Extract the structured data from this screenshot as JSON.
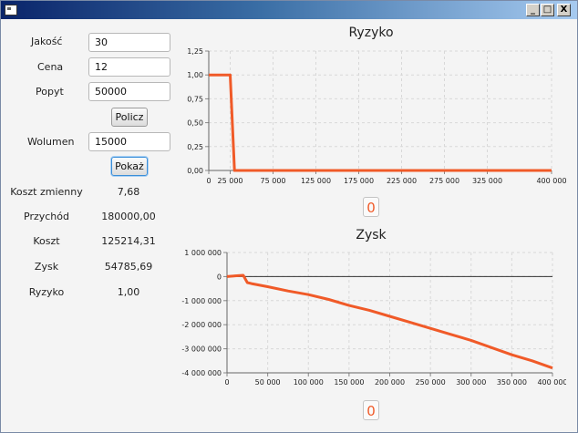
{
  "window": {
    "buttons": [
      "_",
      "□",
      "X"
    ]
  },
  "form": {
    "jakosc": {
      "label": "Jakość",
      "value": "30"
    },
    "cena": {
      "label": "Cena",
      "value": "12"
    },
    "popyt": {
      "label": "Popyt",
      "value": "50000"
    },
    "policz_label": "Policz",
    "wolumen": {
      "label": "Wolumen",
      "value": "15000"
    },
    "pokaz_label": "Pokaż"
  },
  "results": [
    {
      "label": "Koszt zmienny",
      "value": "7,68"
    },
    {
      "label": "Przychód",
      "value": "180000,00"
    },
    {
      "label": "Koszt",
      "value": "125214,31"
    },
    {
      "label": "Zysk",
      "value": "54785,69"
    },
    {
      "label": "Ryzyko",
      "value": "1,00"
    }
  ],
  "colors": {
    "series": "#f05a28",
    "grid": "#d8d8d8"
  },
  "chart_data": [
    {
      "type": "line",
      "title": "Ryzyko",
      "xlim": [
        0,
        400000
      ],
      "ylim": [
        0,
        1.25
      ],
      "x_ticks": [
        "0",
        "25 000",
        "75 000",
        "125 000",
        "175 000",
        "225 000",
        "275 000",
        "325 000",
        "400 000"
      ],
      "y_ticks": [
        "0,00",
        "0,25",
        "0,50",
        "0,75",
        "1,00",
        "1,25"
      ],
      "grid": true,
      "x": [
        0,
        10000,
        20000,
        25000,
        30000,
        50000,
        100000,
        200000,
        300000,
        400000
      ],
      "values": [
        1.0,
        1.0,
        1.0,
        1.0,
        0.0,
        0.0,
        0.0,
        0.0,
        0.0,
        0.0
      ],
      "badge": "0"
    },
    {
      "type": "line",
      "title": "Zysk",
      "xlim": [
        0,
        400000
      ],
      "ylim": [
        -4000000,
        1000000
      ],
      "x_ticks": [
        "0",
        "50 000",
        "100 000",
        "150 000",
        "200 000",
        "250 000",
        "300 000",
        "350 000",
        "400 000"
      ],
      "y_ticks": [
        "-4 000 000",
        "-3 000 000",
        "-2 000 000",
        "-1 000 000",
        "0",
        "1 000 000"
      ],
      "grid": true,
      "x": [
        0,
        10000,
        20000,
        25000,
        30000,
        50000,
        75000,
        100000,
        125000,
        150000,
        175000,
        200000,
        225000,
        250000,
        275000,
        300000,
        325000,
        350000,
        375000,
        400000
      ],
      "values": [
        0,
        30000,
        54786,
        -250000,
        -290000,
        -420000,
        -600000,
        -750000,
        -950000,
        -1200000,
        -1400000,
        -1650000,
        -1900000,
        -2150000,
        -2400000,
        -2650000,
        -2950000,
        -3250000,
        -3500000,
        -3800000
      ],
      "badge": "0"
    }
  ]
}
